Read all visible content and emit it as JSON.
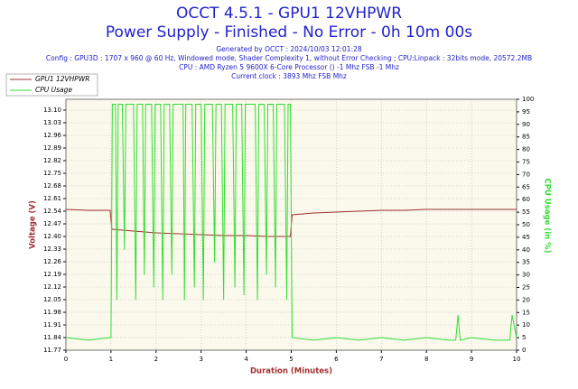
{
  "chart_data": {
    "type": "line",
    "title": "OCCT 4.5.1 - GPU1 12VHPWR",
    "subtitle": "Power Supply - Finished - No Error - 0h 10m 00s",
    "info": [
      "Generated by OCCT : 2024/10/03 12:01:28",
      "Config : GPU3D : 1707 x 960 @ 60 Hz, Windowed mode, Shader Complexity 1, without Error Checking ; CPU:Linpack : 32bits mode, 20572.2MB",
      "CPU : AMD Ryzen 5 9600X 6-Core Processor () -1 Mhz FSB -1 Mhz",
      "Current clock : 3893 Mhz FSB  Mhz"
    ],
    "xlabel": "Duration (Minutes)",
    "ylabel": "Voltage (V)",
    "y2label": "CPU Usage (in %)",
    "xlim": [
      0,
      10
    ],
    "xticks": [
      0,
      1,
      2,
      3,
      4,
      5,
      6,
      7,
      8,
      9,
      10
    ],
    "ylim": [
      11.77,
      13.16
    ],
    "yticks": [
      11.77,
      11.84,
      11.91,
      11.98,
      12.05,
      12.12,
      12.19,
      12.26,
      12.33,
      {
        "value": 12.4,
        "label": "12.40"
      },
      12.47,
      12.54,
      12.61,
      12.68,
      12.75,
      12.82,
      12.89,
      12.96,
      13.03,
      {
        "value": 13.1,
        "label": "13.10"
      }
    ],
    "y2lim": [
      0,
      100
    ],
    "y2ticks": [
      0,
      5,
      10,
      15,
      20,
      25,
      30,
      35,
      40,
      45,
      50,
      55,
      60,
      65,
      70,
      75,
      80,
      85,
      90,
      95,
      100
    ],
    "grid": true,
    "legend": "top-left",
    "series": [
      {
        "name": "GPU1 12VHPWR",
        "color": "#a03030",
        "x": [
          0,
          0.5,
          0.98,
          1.02,
          1.5,
          2,
          2.5,
          3,
          3.5,
          4,
          4.5,
          4.98,
          5.02,
          5.5,
          6,
          6.5,
          7,
          7.5,
          8,
          8.5,
          9,
          9.5,
          10
        ],
        "values": [
          12.55,
          12.545,
          12.545,
          12.44,
          12.43,
          12.42,
          12.415,
          12.41,
          12.405,
          12.405,
          12.4,
          12.4,
          12.52,
          12.53,
          12.535,
          12.54,
          12.545,
          12.545,
          12.55,
          12.55,
          12.55,
          12.55,
          12.55
        ]
      },
      {
        "name": "CPU Usage",
        "color": "#33dd33",
        "axis": "y2",
        "x": [
          0,
          0.5,
          0.97,
          1.0,
          1.03,
          1.1,
          1.13,
          1.16,
          1.25,
          1.3,
          1.33,
          1.5,
          1.55,
          1.58,
          1.7,
          1.74,
          1.77,
          1.9,
          1.95,
          1.98,
          2.1,
          2.15,
          2.18,
          2.3,
          2.35,
          2.38,
          2.6,
          2.63,
          2.66,
          2.8,
          2.85,
          2.88,
          3.0,
          3.05,
          3.08,
          3.25,
          3.3,
          3.33,
          3.45,
          3.5,
          3.53,
          3.7,
          3.75,
          3.78,
          3.9,
          3.95,
          3.98,
          4.2,
          4.25,
          4.28,
          4.4,
          4.45,
          4.48,
          4.6,
          4.65,
          4.68,
          4.85,
          4.9,
          4.93,
          4.98,
          5.02,
          5.5,
          6,
          6.5,
          7,
          7.5,
          8,
          8.5,
          8.65,
          8.7,
          8.75,
          9,
          9.5,
          9.85,
          9.9,
          10
        ],
        "values": [
          5,
          4,
          5,
          5,
          98,
          98,
          20,
          98,
          98,
          40,
          98,
          98,
          20,
          98,
          98,
          30,
          98,
          98,
          25,
          98,
          98,
          20,
          98,
          98,
          30,
          98,
          98,
          20,
          98,
          98,
          25,
          98,
          98,
          20,
          98,
          98,
          35,
          98,
          98,
          20,
          98,
          98,
          25,
          98,
          98,
          22,
          98,
          98,
          20,
          98,
          98,
          30,
          98,
          98,
          25,
          98,
          98,
          20,
          98,
          98,
          5,
          4,
          5,
          4,
          5,
          4,
          5,
          4,
          4,
          14,
          4,
          5,
          4,
          4,
          14,
          5
        ]
      }
    ]
  }
}
